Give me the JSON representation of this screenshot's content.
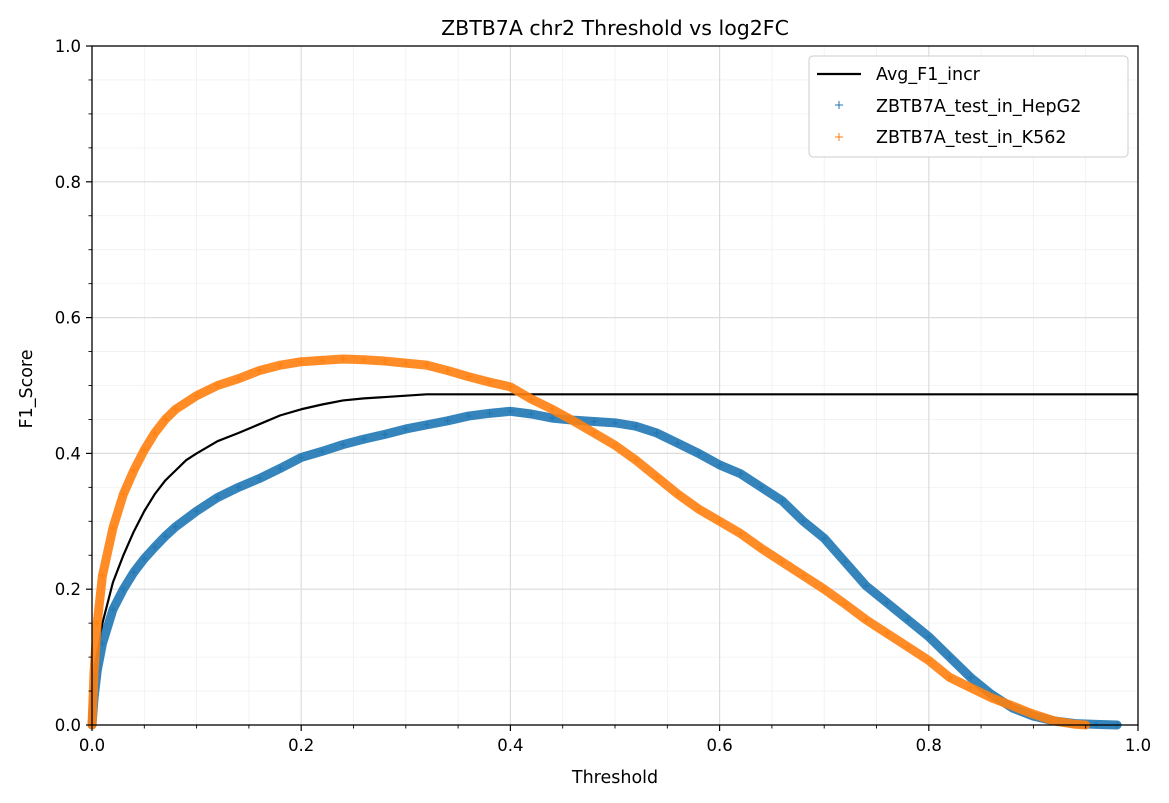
{
  "chart_data": {
    "type": "line",
    "title": "ZBTB7A chr2 Threshold vs log2FC",
    "xlabel": "Threshold",
    "ylabel": "F1_Score",
    "xlim": [
      0,
      1
    ],
    "ylim": [
      0,
      1
    ],
    "x_ticks": [
      "0.0",
      "0.2",
      "0.4",
      "0.6",
      "0.8",
      "1.0"
    ],
    "y_ticks": [
      "0.0",
      "0.2",
      "0.4",
      "0.6",
      "0.8",
      "1.0"
    ],
    "grid": true,
    "minor_grid": true,
    "legend_position": "top-right",
    "series": [
      {
        "name": "Avg_F1_incr",
        "style": "line",
        "color": "#000000",
        "points": [
          [
            0.0,
            0.0
          ],
          [
            0.003,
            0.07
          ],
          [
            0.006,
            0.11
          ],
          [
            0.01,
            0.15
          ],
          [
            0.015,
            0.18
          ],
          [
            0.02,
            0.21
          ],
          [
            0.03,
            0.25
          ],
          [
            0.04,
            0.285
          ],
          [
            0.05,
            0.315
          ],
          [
            0.06,
            0.34
          ],
          [
            0.07,
            0.36
          ],
          [
            0.08,
            0.375
          ],
          [
            0.09,
            0.39
          ],
          [
            0.1,
            0.4
          ],
          [
            0.12,
            0.418
          ],
          [
            0.14,
            0.43
          ],
          [
            0.16,
            0.443
          ],
          [
            0.18,
            0.456
          ],
          [
            0.2,
            0.465
          ],
          [
            0.22,
            0.472
          ],
          [
            0.24,
            0.478
          ],
          [
            0.26,
            0.481
          ],
          [
            0.28,
            0.483
          ],
          [
            0.3,
            0.485
          ],
          [
            0.32,
            0.487
          ],
          [
            0.35,
            0.487
          ],
          [
            0.4,
            0.487
          ],
          [
            0.5,
            0.487
          ],
          [
            0.6,
            0.487
          ],
          [
            0.7,
            0.487
          ],
          [
            0.8,
            0.487
          ],
          [
            0.9,
            0.487
          ],
          [
            1.0,
            0.487
          ]
        ]
      },
      {
        "name": "ZBTB7A_test_in_HepG2",
        "style": "plus-markers",
        "color": "#1f77b4",
        "points": [
          [
            0.0,
            0.0
          ],
          [
            0.002,
            0.04
          ],
          [
            0.005,
            0.08
          ],
          [
            0.01,
            0.12
          ],
          [
            0.02,
            0.17
          ],
          [
            0.03,
            0.2
          ],
          [
            0.04,
            0.225
          ],
          [
            0.05,
            0.245
          ],
          [
            0.06,
            0.262
          ],
          [
            0.07,
            0.278
          ],
          [
            0.08,
            0.292
          ],
          [
            0.1,
            0.315
          ],
          [
            0.12,
            0.335
          ],
          [
            0.14,
            0.35
          ],
          [
            0.16,
            0.363
          ],
          [
            0.18,
            0.378
          ],
          [
            0.2,
            0.394
          ],
          [
            0.22,
            0.403
          ],
          [
            0.24,
            0.413
          ],
          [
            0.26,
            0.421
          ],
          [
            0.28,
            0.428
          ],
          [
            0.3,
            0.436
          ],
          [
            0.32,
            0.442
          ],
          [
            0.34,
            0.448
          ],
          [
            0.36,
            0.455
          ],
          [
            0.38,
            0.459
          ],
          [
            0.4,
            0.462
          ],
          [
            0.42,
            0.458
          ],
          [
            0.44,
            0.452
          ],
          [
            0.46,
            0.449
          ],
          [
            0.48,
            0.447
          ],
          [
            0.5,
            0.445
          ],
          [
            0.52,
            0.44
          ],
          [
            0.54,
            0.43
          ],
          [
            0.56,
            0.415
          ],
          [
            0.58,
            0.4
          ],
          [
            0.6,
            0.383
          ],
          [
            0.62,
            0.37
          ],
          [
            0.64,
            0.35
          ],
          [
            0.66,
            0.33
          ],
          [
            0.68,
            0.3
          ],
          [
            0.7,
            0.275
          ],
          [
            0.72,
            0.24
          ],
          [
            0.74,
            0.205
          ],
          [
            0.76,
            0.18
          ],
          [
            0.78,
            0.155
          ],
          [
            0.8,
            0.13
          ],
          [
            0.82,
            0.1
          ],
          [
            0.84,
            0.07
          ],
          [
            0.86,
            0.045
          ],
          [
            0.88,
            0.025
          ],
          [
            0.9,
            0.013
          ],
          [
            0.92,
            0.006
          ],
          [
            0.94,
            0.002
          ],
          [
            0.96,
            0.001
          ],
          [
            0.98,
            0.0
          ]
        ]
      },
      {
        "name": "ZBTB7A_test_in_K562",
        "style": "plus-markers",
        "color": "#ff7f0e",
        "points": [
          [
            0.0,
            0.0
          ],
          [
            0.002,
            0.08
          ],
          [
            0.005,
            0.15
          ],
          [
            0.01,
            0.22
          ],
          [
            0.02,
            0.29
          ],
          [
            0.03,
            0.34
          ],
          [
            0.04,
            0.375
          ],
          [
            0.05,
            0.405
          ],
          [
            0.06,
            0.43
          ],
          [
            0.07,
            0.45
          ],
          [
            0.08,
            0.465
          ],
          [
            0.1,
            0.485
          ],
          [
            0.12,
            0.5
          ],
          [
            0.14,
            0.51
          ],
          [
            0.16,
            0.522
          ],
          [
            0.18,
            0.53
          ],
          [
            0.2,
            0.535
          ],
          [
            0.22,
            0.537
          ],
          [
            0.24,
            0.539
          ],
          [
            0.26,
            0.538
          ],
          [
            0.28,
            0.536
          ],
          [
            0.3,
            0.533
          ],
          [
            0.32,
            0.53
          ],
          [
            0.34,
            0.522
          ],
          [
            0.36,
            0.513
          ],
          [
            0.38,
            0.505
          ],
          [
            0.4,
            0.498
          ],
          [
            0.42,
            0.48
          ],
          [
            0.44,
            0.465
          ],
          [
            0.46,
            0.448
          ],
          [
            0.48,
            0.43
          ],
          [
            0.5,
            0.412
          ],
          [
            0.52,
            0.39
          ],
          [
            0.54,
            0.365
          ],
          [
            0.56,
            0.34
          ],
          [
            0.58,
            0.318
          ],
          [
            0.6,
            0.3
          ],
          [
            0.62,
            0.282
          ],
          [
            0.64,
            0.26
          ],
          [
            0.66,
            0.24
          ],
          [
            0.68,
            0.22
          ],
          [
            0.7,
            0.2
          ],
          [
            0.72,
            0.178
          ],
          [
            0.74,
            0.155
          ],
          [
            0.76,
            0.135
          ],
          [
            0.78,
            0.115
          ],
          [
            0.8,
            0.095
          ],
          [
            0.82,
            0.07
          ],
          [
            0.84,
            0.055
          ],
          [
            0.86,
            0.04
          ],
          [
            0.88,
            0.028
          ],
          [
            0.9,
            0.016
          ],
          [
            0.92,
            0.006
          ],
          [
            0.94,
            0.001
          ],
          [
            0.95,
            0.0
          ]
        ]
      }
    ]
  }
}
